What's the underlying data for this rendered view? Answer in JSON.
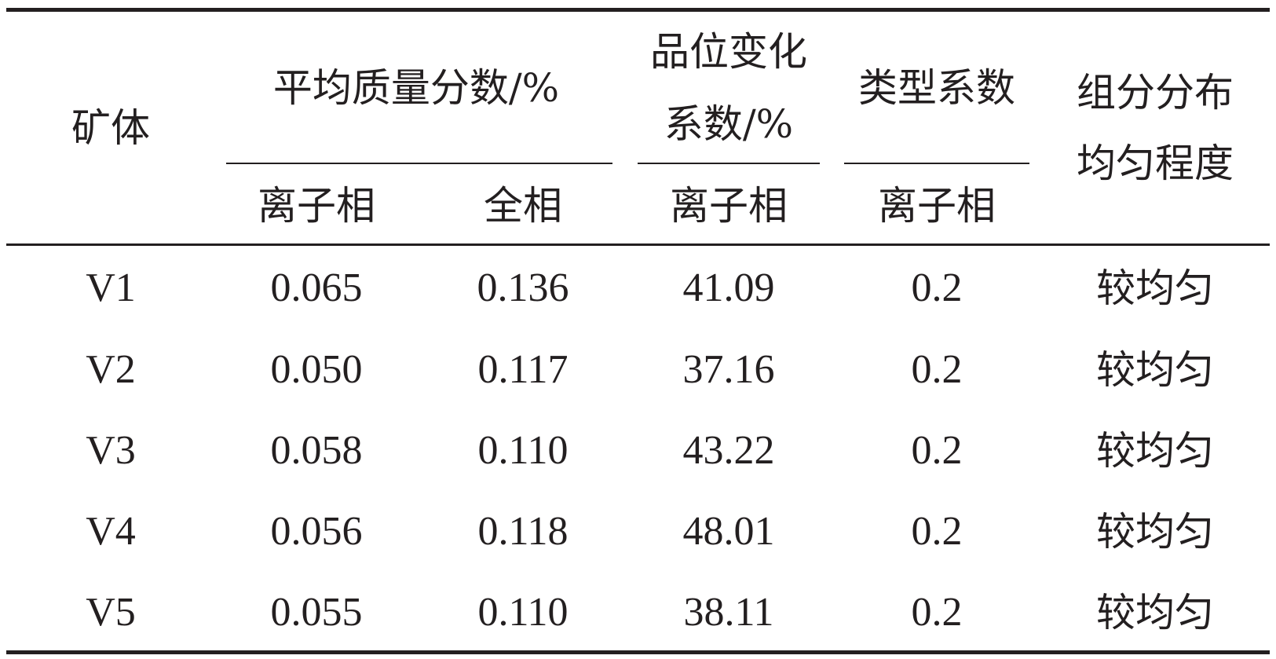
{
  "table": {
    "headers": {
      "ore_body": "矿体",
      "avg_mass_fraction": "平均质量分数/%",
      "grade_variation_line1": "品位变化",
      "grade_variation_line2": "系数/%",
      "type_coefficient": "类型系数",
      "distribution_line1": "组分分布",
      "distribution_line2": "均匀程度",
      "sub": [
        "离子相",
        "全相",
        "离子相",
        "离子相"
      ]
    },
    "rows": [
      {
        "ore_body": "V1",
        "ionic": "0.065",
        "total": "0.136",
        "variation": "41.09",
        "type_coef": "0.2",
        "uniformity": "较均匀"
      },
      {
        "ore_body": "V2",
        "ionic": "0.050",
        "total": "0.117",
        "variation": "37.16",
        "type_coef": "0.2",
        "uniformity": "较均匀"
      },
      {
        "ore_body": "V3",
        "ionic": "0.058",
        "total": "0.110",
        "variation": "43.22",
        "type_coef": "0.2",
        "uniformity": "较均匀"
      },
      {
        "ore_body": "V4",
        "ionic": "0.056",
        "total": "0.118",
        "variation": "48.01",
        "type_coef": "0.2",
        "uniformity": "较均匀"
      },
      {
        "ore_body": "V5",
        "ionic": "0.055",
        "total": "0.110",
        "variation": "38.11",
        "type_coef": "0.2",
        "uniformity": "较均匀"
      }
    ]
  }
}
